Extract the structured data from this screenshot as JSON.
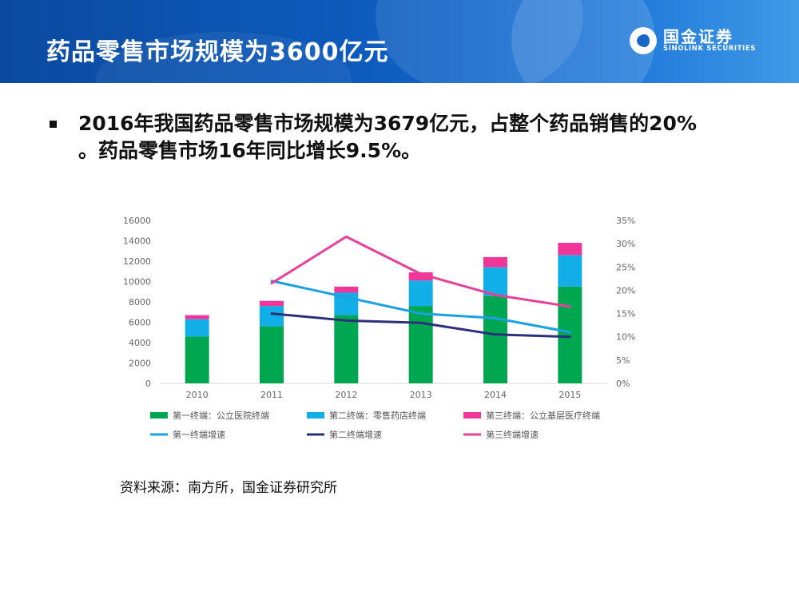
{
  "header": {
    "title": "药品零售市场规模为3600亿元",
    "logo_cn": "国金证券",
    "logo_en": "SINOLINK SECURITIES"
  },
  "bullet": {
    "line1": "2016年我国药品零售市场规模为3679亿元，占整个药品销售的20%",
    "line2": "。药品零售市场16年同比增长9.5%。"
  },
  "source": "资料来源：南方所，国金证券研究所",
  "colors": {
    "first": "#00a650",
    "second": "#12aee8",
    "third": "#f0369a",
    "first_growth": "#1ba1e2",
    "second_growth": "#2e2f7a",
    "third_growth": "#e6409b"
  },
  "chart_data": {
    "type": "bar",
    "stacked": true,
    "categories": [
      "2010",
      "2011",
      "2012",
      "2013",
      "2014",
      "2015"
    ],
    "y_left": {
      "min": 0,
      "max": 16000,
      "ticks": [
        "0",
        "2000",
        "4000",
        "6000",
        "8000",
        "10000",
        "12000",
        "14000",
        "16000"
      ]
    },
    "y_right": {
      "min": 0,
      "max": 35,
      "ticks": [
        "0%",
        "5%",
        "10%",
        "15%",
        "20%",
        "25%",
        "30%",
        "35%"
      ]
    },
    "series": [
      {
        "name": "第一终端：公立医院终端",
        "kind": "bar",
        "values": [
          4600,
          5600,
          6700,
          7600,
          8600,
          9500
        ]
      },
      {
        "name": "第二终端：零售药店终端",
        "kind": "bar",
        "values": [
          1700,
          2000,
          2200,
          2500,
          2800,
          3100
        ]
      },
      {
        "name": "第三终端：公立基层医疗终端",
        "kind": "bar",
        "values": [
          400,
          500,
          600,
          800,
          1000,
          1200
        ]
      },
      {
        "name": "第一终端增速",
        "kind": "line",
        "axis": "right",
        "values": [
          null,
          22,
          18.5,
          15,
          14,
          11
        ]
      },
      {
        "name": "第二终端增速",
        "kind": "line",
        "axis": "right",
        "values": [
          null,
          15,
          13.5,
          13,
          10.5,
          10
        ]
      },
      {
        "name": "第三终端增速",
        "kind": "line",
        "axis": "right",
        "values": [
          null,
          21.5,
          31.5,
          23.5,
          19,
          16.5
        ]
      }
    ]
  }
}
